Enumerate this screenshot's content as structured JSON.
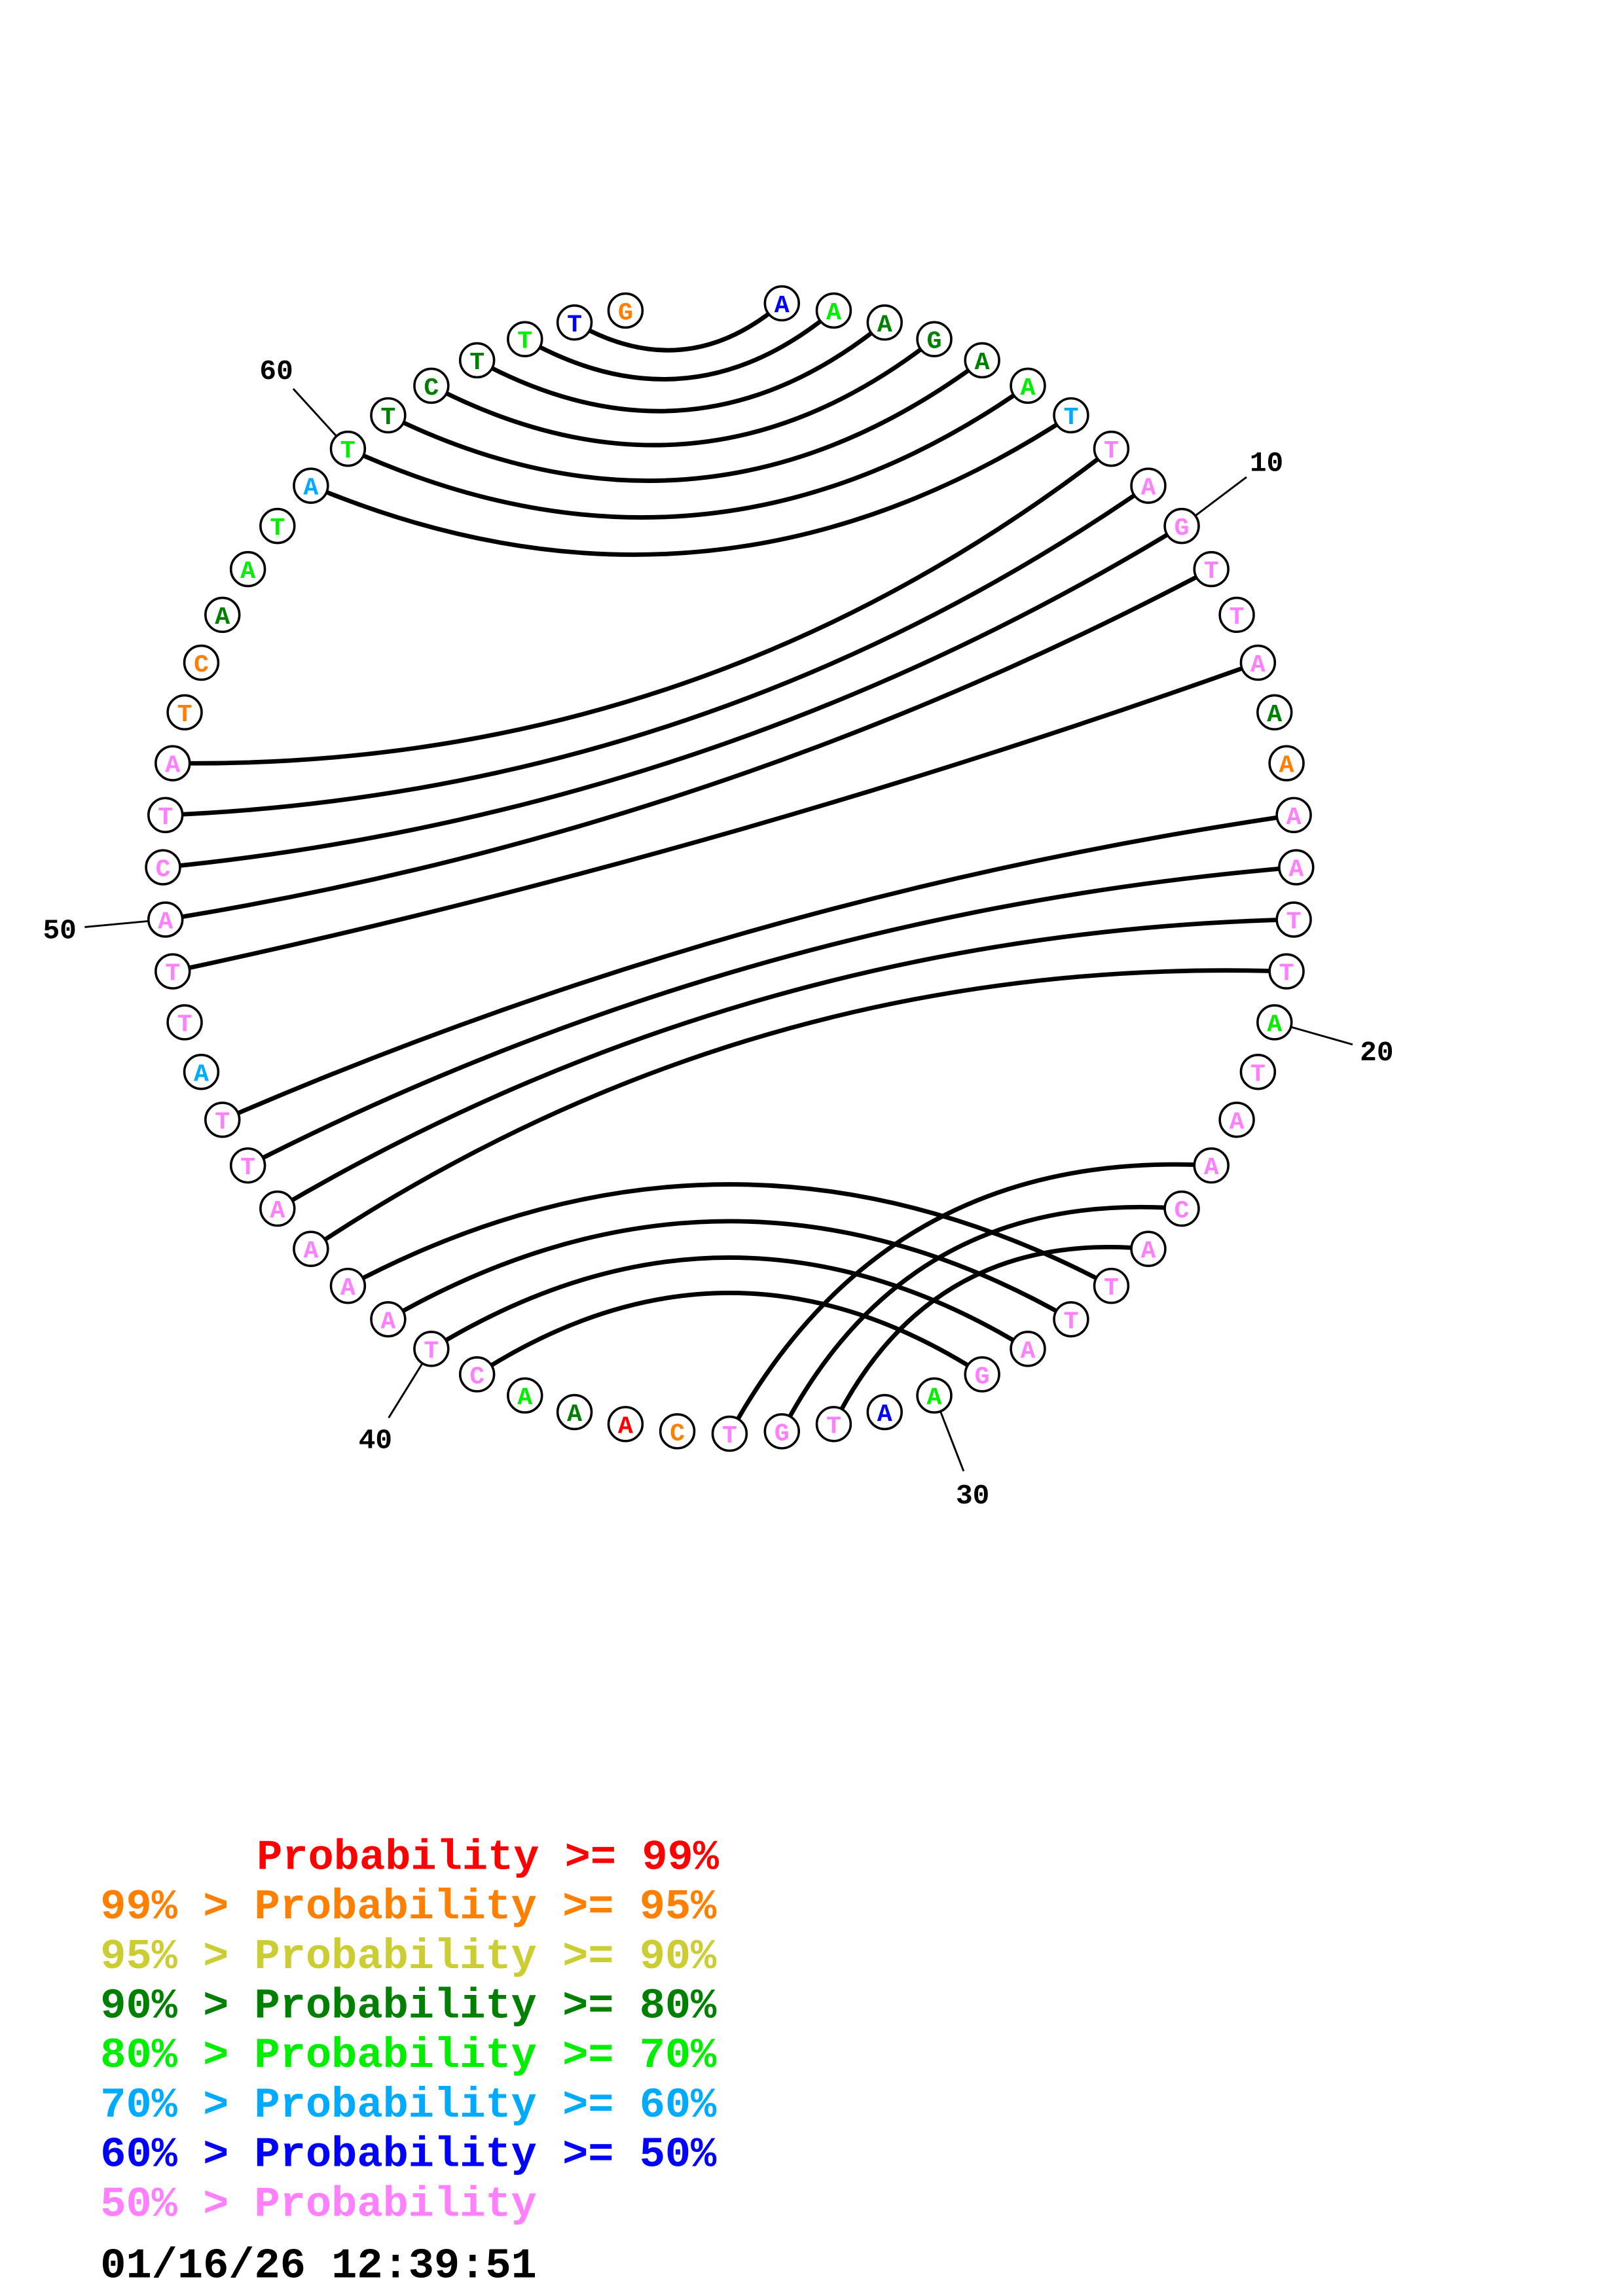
{
  "colors": {
    "red": "#ff0000",
    "orange": "#ff8000",
    "yellow": "#cccc33",
    "darkgreen": "#008000",
    "lime": "#00ee00",
    "skyblue": "#00aaff",
    "blue": "#0000ff",
    "pink": "#ff80ff"
  },
  "sequence": [
    {
      "b": "A",
      "c": "blue"
    },
    {
      "b": "A",
      "c": "lime"
    },
    {
      "b": "A",
      "c": "darkgreen"
    },
    {
      "b": "G",
      "c": "darkgreen"
    },
    {
      "b": "A",
      "c": "darkgreen"
    },
    {
      "b": "A",
      "c": "lime"
    },
    {
      "b": "T",
      "c": "skyblue"
    },
    {
      "b": "T",
      "c": "pink"
    },
    {
      "b": "A",
      "c": "pink"
    },
    {
      "b": "G",
      "c": "pink"
    },
    {
      "b": "T",
      "c": "pink"
    },
    {
      "b": "T",
      "c": "pink"
    },
    {
      "b": "A",
      "c": "pink"
    },
    {
      "b": "A",
      "c": "darkgreen"
    },
    {
      "b": "A",
      "c": "orange"
    },
    {
      "b": "A",
      "c": "pink"
    },
    {
      "b": "A",
      "c": "pink"
    },
    {
      "b": "T",
      "c": "pink"
    },
    {
      "b": "T",
      "c": "pink"
    },
    {
      "b": "A",
      "c": "lime"
    },
    {
      "b": "T",
      "c": "pink"
    },
    {
      "b": "A",
      "c": "pink"
    },
    {
      "b": "A",
      "c": "pink"
    },
    {
      "b": "C",
      "c": "pink"
    },
    {
      "b": "A",
      "c": "pink"
    },
    {
      "b": "T",
      "c": "pink"
    },
    {
      "b": "T",
      "c": "pink"
    },
    {
      "b": "A",
      "c": "pink"
    },
    {
      "b": "G",
      "c": "pink"
    },
    {
      "b": "A",
      "c": "lime"
    },
    {
      "b": "A",
      "c": "blue"
    },
    {
      "b": "T",
      "c": "pink"
    },
    {
      "b": "G",
      "c": "pink"
    },
    {
      "b": "T",
      "c": "pink"
    },
    {
      "b": "C",
      "c": "orange"
    },
    {
      "b": "A",
      "c": "red"
    },
    {
      "b": "A",
      "c": "darkgreen"
    },
    {
      "b": "A",
      "c": "lime"
    },
    {
      "b": "C",
      "c": "pink"
    },
    {
      "b": "T",
      "c": "pink"
    },
    {
      "b": "A",
      "c": "pink"
    },
    {
      "b": "A",
      "c": "pink"
    },
    {
      "b": "A",
      "c": "pink"
    },
    {
      "b": "A",
      "c": "pink"
    },
    {
      "b": "T",
      "c": "pink"
    },
    {
      "b": "T",
      "c": "pink"
    },
    {
      "b": "A",
      "c": "skyblue"
    },
    {
      "b": "T",
      "c": "pink"
    },
    {
      "b": "T",
      "c": "pink"
    },
    {
      "b": "A",
      "c": "pink"
    },
    {
      "b": "C",
      "c": "pink"
    },
    {
      "b": "T",
      "c": "pink"
    },
    {
      "b": "A",
      "c": "pink"
    },
    {
      "b": "T",
      "c": "orange"
    },
    {
      "b": "C",
      "c": "orange"
    },
    {
      "b": "A",
      "c": "darkgreen"
    },
    {
      "b": "A",
      "c": "lime"
    },
    {
      "b": "T",
      "c": "lime"
    },
    {
      "b": "A",
      "c": "skyblue"
    },
    {
      "b": "T",
      "c": "lime"
    },
    {
      "b": "T",
      "c": "darkgreen"
    },
    {
      "b": "C",
      "c": "darkgreen"
    },
    {
      "b": "T",
      "c": "darkgreen"
    },
    {
      "b": "T",
      "c": "lime"
    },
    {
      "b": "T",
      "c": "blue"
    },
    {
      "b": "G",
      "c": "orange"
    }
  ],
  "pairs": [
    [
      1,
      65
    ],
    [
      2,
      64
    ],
    [
      3,
      63
    ],
    [
      4,
      62
    ],
    [
      5,
      61
    ],
    [
      6,
      60
    ],
    [
      7,
      59
    ],
    [
      8,
      53
    ],
    [
      9,
      52
    ],
    [
      10,
      51
    ],
    [
      11,
      50
    ],
    [
      13,
      49
    ],
    [
      16,
      46
    ],
    [
      17,
      45
    ],
    [
      18,
      44
    ],
    [
      19,
      43
    ],
    [
      23,
      34
    ],
    [
      24,
      33
    ],
    [
      25,
      32
    ],
    [
      26,
      42
    ],
    [
      27,
      41
    ],
    [
      28,
      40
    ],
    [
      29,
      39
    ]
  ],
  "numbering": [
    {
      "index": 10,
      "label": "10"
    },
    {
      "index": 20,
      "label": "20"
    },
    {
      "index": 30,
      "label": "30"
    },
    {
      "index": 40,
      "label": "40"
    },
    {
      "index": 50,
      "label": "50"
    },
    {
      "index": 60,
      "label": "60"
    }
  ],
  "legend": [
    {
      "prefix": "",
      "text": "Probability >= 99%",
      "color": "#ff0000"
    },
    {
      "prefix": "99% > ",
      "text": "Probability >= 95%",
      "color": "#ff8000"
    },
    {
      "prefix": "95% > ",
      "text": "Probability >= 90%",
      "color": "#cccc33"
    },
    {
      "prefix": "90% > ",
      "text": "Probability >= 80%",
      "color": "#008000"
    },
    {
      "prefix": "80% > ",
      "text": "Probability >= 70%",
      "color": "#00ee00"
    },
    {
      "prefix": "70% > ",
      "text": "Probability >= 60%",
      "color": "#00aaff"
    },
    {
      "prefix": "60% > ",
      "text": "Probability >= 50%",
      "color": "#0000ff"
    },
    {
      "prefix": "50% > ",
      "text": "Probability",
      "color": "#ff80ff"
    }
  ],
  "timestamp": "01/16/26 12:39:51"
}
